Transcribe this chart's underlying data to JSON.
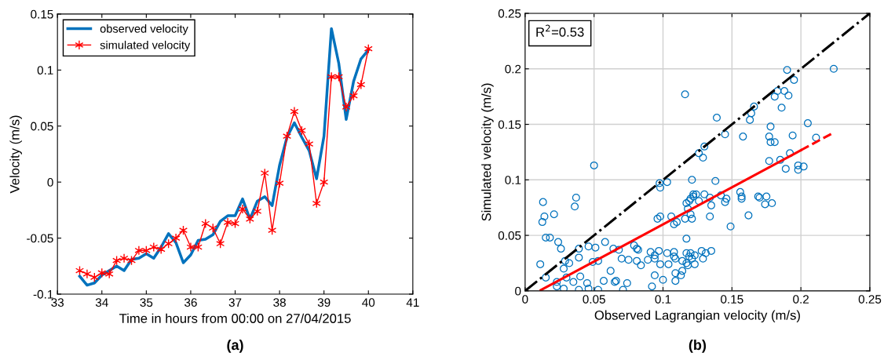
{
  "chart_data": [
    {
      "type": "line",
      "xlabel": "Time in hours from 00:00 on 27/04/2015",
      "ylabel": "Velocity (m/s)",
      "annotations": [
        "(a)"
      ],
      "x": [
        33.5,
        33.667,
        33.833,
        34.0,
        34.167,
        34.333,
        34.5,
        34.667,
        34.833,
        35.0,
        35.167,
        35.333,
        35.5,
        35.667,
        35.833,
        36.0,
        36.167,
        36.333,
        36.5,
        36.667,
        36.833,
        37.0,
        37.167,
        37.333,
        37.5,
        37.667,
        37.833,
        38.0,
        38.167,
        38.333,
        38.5,
        38.667,
        38.833,
        39.0,
        39.167,
        39.333,
        39.5,
        39.667,
        39.833,
        40.0
      ],
      "series": [
        {
          "name": "observed velocity",
          "color": "#0072bd",
          "marker": "none",
          "values": [
            -0.084,
            -0.092,
            -0.09,
            -0.083,
            -0.079,
            -0.075,
            -0.079,
            -0.069,
            -0.068,
            -0.064,
            -0.068,
            -0.058,
            -0.046,
            -0.054,
            -0.072,
            -0.065,
            -0.052,
            -0.051,
            -0.047,
            -0.035,
            -0.03,
            -0.03,
            -0.015,
            -0.033,
            -0.017,
            -0.013,
            -0.021,
            0.015,
            0.04,
            0.053,
            0.04,
            0.028,
            0.003,
            0.041,
            0.137,
            0.106,
            0.056,
            0.09,
            0.11,
            0.118
          ]
        },
        {
          "name": "simulated velocity",
          "color": "#ff0000",
          "marker": "cross",
          "values": [
            -0.079,
            -0.082,
            -0.085,
            -0.081,
            -0.082,
            -0.07,
            -0.068,
            -0.07,
            -0.061,
            -0.061,
            -0.058,
            -0.06,
            -0.055,
            -0.05,
            -0.043,
            -0.058,
            -0.058,
            -0.037,
            -0.041,
            -0.055,
            -0.036,
            -0.037,
            -0.024,
            -0.033,
            -0.026,
            0.008,
            -0.043,
            -0.001,
            0.041,
            0.063,
            0.046,
            0.034,
            -0.019,
            0.0,
            0.094,
            0.094,
            0.067,
            0.077,
            0.087,
            0.119
          ]
        }
      ],
      "xlim": [
        33,
        41
      ],
      "xticks": [
        33,
        34,
        35,
        36,
        37,
        38,
        39,
        40,
        41
      ],
      "ylim": [
        -0.1,
        0.15
      ],
      "yticks": [
        -0.1,
        -0.05,
        0,
        0.05,
        0.1,
        0.15
      ],
      "grid": false,
      "legend": "top left"
    },
    {
      "type": "scatter",
      "xlabel": "Observed Lagrangian velocity (m/s)",
      "ylabel": "Simulated velocity (m/s)",
      "annotations": [
        "R$^{2}$=0.53",
        "(b)"
      ],
      "series": [
        {
          "type": "scatter",
          "color": "#0072bd",
          "marker": "circle",
          "x": [
            0.2238,
            0.19,
            0.195,
            0.116,
            0.183,
            0.188,
            0.181,
            0.191,
            0.186,
            0.166,
            0.164,
            0.163,
            0.139,
            0.205,
            0.178,
            0.145,
            0.158,
            0.177,
            0.194,
            0.211,
            0.178,
            0.181,
            0.13,
            0.126,
            0.129,
            0.177,
            0.185,
            0.192,
            0.189,
            0.198,
            0.198,
            0.202,
            0.05,
            0.0975,
            0.098,
            0.103,
            0.121,
            0.138,
            0.013,
            0.037,
            0.036,
            0.0125,
            0.014,
            0.021,
            0.015,
            0.018,
            0.024,
            0.026,
            0.011,
            0.029,
            0.032,
            0.028,
            0.015,
            0.03,
            0.023,
            0.023,
            0.028,
            0.035,
            0.039,
            0.039,
            0.04,
            0.039,
            0.045,
            0.046,
            0.046,
            0.051,
            0.049,
            0.053,
            0.053,
            0.058,
            0.057,
            0.062,
            0.064,
            0.068,
            0.065,
            0.066,
            0.07,
            0.071,
            0.074,
            0.075,
            0.079,
            0.081,
            0.082,
            0.081,
            0.084,
            0.089,
            0.091,
            0.094,
            0.094,
            0.094,
            0.092,
            0.097,
            0.098,
            0.1,
            0.096,
            0.098,
            0.103,
            0.104,
            0.106,
            0.108,
            0.11,
            0.108,
            0.108,
            0.109,
            0.109,
            0.109,
            0.113,
            0.114,
            0.114,
            0.117,
            0.116,
            0.117,
            0.117,
            0.118,
            0.119,
            0.12,
            0.121,
            0.123,
            0.123,
            0.117,
            0.119,
            0.12,
            0.122,
            0.122,
            0.124,
            0.118,
            0.12,
            0.121,
            0.126,
            0.128,
            0.129,
            0.131,
            0.135,
            0.13,
            0.134,
            0.135,
            0.134,
            0.142,
            0.146,
            0.145,
            0.149,
            0.156,
            0.157,
            0.157,
            0.162,
            0.169,
            0.17,
            0.175,
            0.174,
            0.179
          ],
          "values": [
            0.2,
            0.199,
            0.19,
            0.177,
            0.18,
            0.18,
            0.175,
            0.176,
            0.165,
            0.166,
            0.16,
            0.154,
            0.156,
            0.151,
            0.148,
            0.141,
            0.139,
            0.139,
            0.14,
            0.138,
            0.134,
            0.134,
            0.13,
            0.124,
            0.12,
            0.117,
            0.118,
            0.124,
            0.11,
            0.113,
            0.109,
            0.112,
            0.113,
            0.097,
            0.093,
            0.098,
            0.1,
            0.099,
            0.08,
            0.084,
            0.076,
            0.062,
            0.067,
            0.069,
            0.048,
            0.048,
            0.044,
            0.038,
            0.024,
            0.027,
            0.025,
            0.02,
            0.012,
            0.012,
            0.008,
            0.004,
            0.002,
            0.008,
            0.038,
            0.03,
            0.013,
            0.001,
            0.007,
            0.002,
            0.04,
            0.039,
            0.026,
            0.027,
            0.001,
            0.044,
            0.009,
            0.018,
            0.038,
            0.037,
            0.008,
            0.009,
            0.029,
            0.001,
            0.007,
            0.028,
            0.041,
            0.038,
            0.037,
            0.027,
            0.023,
            0.028,
            0.035,
            0.032,
            0.029,
            0.014,
            0.004,
            0.036,
            0.024,
            0.01,
            0.065,
            0.067,
            0.034,
            0.024,
            0.067,
            0.06,
            0.062,
            0.035,
            0.031,
            0.029,
            0.016,
            0.009,
            0.014,
            0.018,
            0.027,
            0.047,
            0.065,
            0.034,
            0.025,
            0.023,
            0.031,
            0.034,
            0.029,
            0.024,
            0.032,
            0.079,
            0.081,
            0.083,
            0.085,
            0.087,
            0.087,
            0.074,
            0.069,
            0.065,
            0.081,
            0.036,
            0.029,
            0.034,
            0.036,
            0.087,
            0.067,
            0.077,
            0.084,
            0.086,
            0.083,
            0.08,
            0.058,
            0.089,
            0.085,
            0.083,
            0.068,
            0.085,
            0.084,
            0.085,
            0.078,
            0.079
          ]
        },
        {
          "type": "line",
          "color": "#000000",
          "line_style": "dashdot",
          "x": [
            0,
            0.25
          ],
          "values": [
            0,
            0.25
          ]
        },
        {
          "type": "line",
          "color": "#ff0000",
          "line_style": "solid",
          "x": [
            0.0114,
            0.2
          ],
          "values": [
            0.0007,
            0.1267
          ]
        },
        {
          "type": "line",
          "color": "#ff0000",
          "line_style": "dashed",
          "x": [
            0.2,
            0.2236
          ],
          "values": [
            0.1267,
            0.1424
          ]
        }
      ],
      "xlim": [
        0,
        0.25
      ],
      "xticks": [
        0,
        0.05,
        0.1,
        0.15,
        0.2,
        0.25
      ],
      "ylim": [
        0,
        0.25
      ],
      "yticks": [
        0,
        0.05,
        0.1,
        0.15,
        0.2,
        0.25
      ],
      "grid": true
    }
  ]
}
